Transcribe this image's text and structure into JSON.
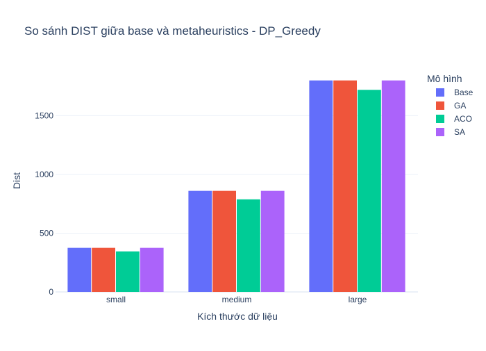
{
  "chart_data": {
    "type": "bar",
    "title": "So sánh DIST giữa base và metaheuristics - DP_Greedy",
    "xlabel": "Kích thước dữ liệu",
    "ylabel": "Dist",
    "categories": [
      "small",
      "medium",
      "large"
    ],
    "ylim": [
      0,
      1893
    ],
    "yticks": [
      0,
      500,
      1000,
      1500
    ],
    "grid": true,
    "legend": {
      "title": "Mô hình",
      "placement": "top-right"
    },
    "series": [
      {
        "name": "Base",
        "color": "#636efa",
        "values": [
          375,
          860,
          1800
        ]
      },
      {
        "name": "GA",
        "color": "#ef553b",
        "values": [
          375,
          860,
          1800
        ]
      },
      {
        "name": "ACO",
        "color": "#00cc96",
        "values": [
          345,
          788,
          1720
        ]
      },
      {
        "name": "SA",
        "color": "#ab63fa",
        "values": [
          375,
          860,
          1800
        ]
      }
    ]
  }
}
